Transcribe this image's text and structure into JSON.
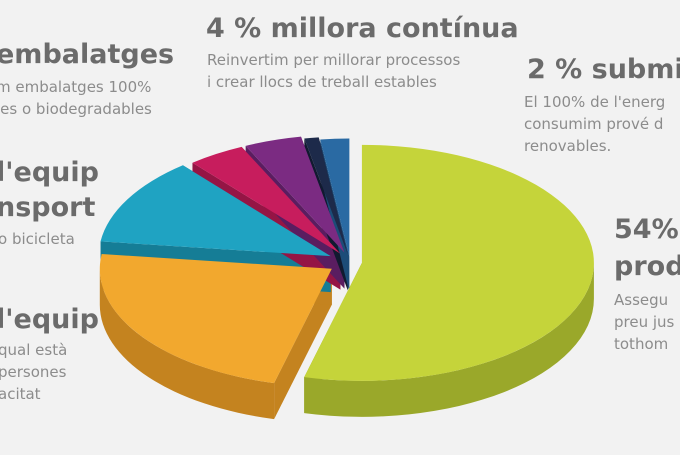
{
  "labels": {
    "embalatges": {
      "title": "embalatges",
      "lines": [
        "m embalatges 100%",
        "les o biodegradables"
      ]
    },
    "millora": {
      "title": "4 % millora contínua",
      "lines": [
        "Reinvertim per millorar processos",
        "i crear llocs de treball estables"
      ]
    },
    "energia": {
      "title": "2 % submi",
      "lines": [
        "El 100% de l'energ",
        "consumim prové d",
        "renovables."
      ]
    },
    "equip_transport": {
      "title_lines": [
        "l'equip",
        "nsport"
      ],
      "lines": [
        "o bicicleta"
      ]
    },
    "producte": {
      "title_lines": [
        "54%",
        "prod"
      ],
      "lines": [
        "Assegu",
        "preu jus",
        "tothom"
      ]
    },
    "equip_capacitat": {
      "title": "l'equip",
      "lines": [
        "qual està",
        "persones",
        "acitat"
      ]
    }
  },
  "chart_data": {
    "type": "pie",
    "style": "3d-exploded",
    "slices": [
      {
        "value": 54,
        "color": "#c5d43a",
        "side": "#9aa82a"
      },
      {
        "value": 23,
        "color": "#f2a82e",
        "side": "#c4831f"
      },
      {
        "value": 12,
        "color": "#1fa3c2",
        "side": "#157d96"
      },
      {
        "value": 4,
        "color": "#c71d5d",
        "side": "#951545"
      },
      {
        "value": 4,
        "color": "#7b2b82",
        "side": "#5a1d60"
      },
      {
        "value": 1,
        "color": "#1d2a4a",
        "side": "#111a30"
      },
      {
        "value": 2,
        "color": "#2a6aa3",
        "side": "#1c4c78"
      }
    ]
  }
}
